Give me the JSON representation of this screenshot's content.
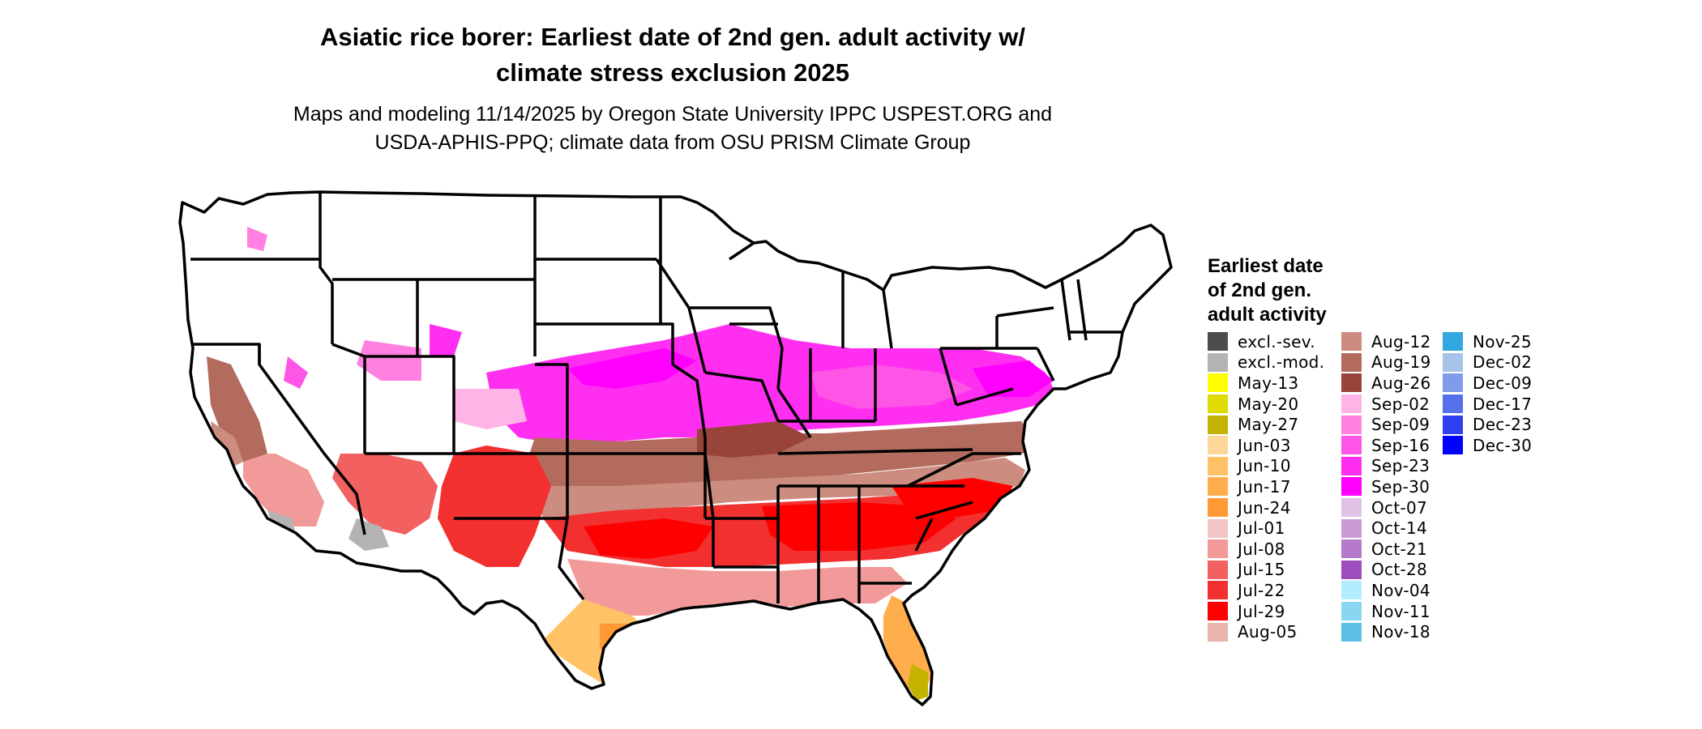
{
  "title": {
    "line1": "Asiatic rice borer: Earliest date of 2nd gen. adult activity w/",
    "line2": "climate stress exclusion 2025"
  },
  "subtitle": {
    "line1": "Maps and modeling 11/14/2025 by Oregon State University IPPC USPEST.ORG and",
    "line2": "USDA-APHIS-PPQ; climate data from OSU PRISM Climate Group"
  },
  "legend": {
    "title_lines": [
      "Earliest date",
      "of 2nd gen.",
      "adult activity"
    ],
    "columns": [
      [
        {
          "label": "excl.-sev.",
          "color": "#4d4d4d"
        },
        {
          "label": "excl.-mod.",
          "color": "#b3b3b3"
        },
        {
          "label": "May-13",
          "color": "#ffff00"
        },
        {
          "label": "May-20",
          "color": "#e0db00"
        },
        {
          "label": "May-27",
          "color": "#c4b300"
        },
        {
          "label": "Jun-03",
          "color": "#ffd699"
        },
        {
          "label": "Jun-10",
          "color": "#ffc266"
        },
        {
          "label": "Jun-17",
          "color": "#ffad4d"
        },
        {
          "label": "Jun-24",
          "color": "#ff9933"
        },
        {
          "label": "Jul-01",
          "color": "#f5c6c6"
        },
        {
          "label": "Jul-08",
          "color": "#f29a9a"
        },
        {
          "label": "Jul-15",
          "color": "#f26060"
        },
        {
          "label": "Jul-22",
          "color": "#f23030"
        },
        {
          "label": "Jul-29",
          "color": "#ff0000"
        },
        {
          "label": "Aug-05",
          "color": "#e8b4ac"
        }
      ],
      [
        {
          "label": "Aug-12",
          "color": "#cc8c80"
        },
        {
          "label": "Aug-19",
          "color": "#b36b5e"
        },
        {
          "label": "Aug-26",
          "color": "#99443a"
        },
        {
          "label": "Sep-02",
          "color": "#ffb3e6"
        },
        {
          "label": "Sep-09",
          "color": "#ff80e0"
        },
        {
          "label": "Sep-16",
          "color": "#ff55e6"
        },
        {
          "label": "Sep-23",
          "color": "#ff2ef0"
        },
        {
          "label": "Sep-30",
          "color": "#ff00ff"
        },
        {
          "label": "Oct-07",
          "color": "#e0c2e6"
        },
        {
          "label": "Oct-14",
          "color": "#c99bd6"
        },
        {
          "label": "Oct-21",
          "color": "#b57ac9"
        },
        {
          "label": "Oct-28",
          "color": "#9e4dbd"
        },
        {
          "label": "Nov-04",
          "color": "#b3ecff"
        },
        {
          "label": "Nov-11",
          "color": "#8ad6f2"
        },
        {
          "label": "Nov-18",
          "color": "#5cbfe6"
        }
      ],
      [
        {
          "label": "Nov-25",
          "color": "#33a8e0"
        },
        {
          "label": "Dec-02",
          "color": "#a6c4ea"
        },
        {
          "label": "Dec-09",
          "color": "#7f9bea"
        },
        {
          "label": "Dec-17",
          "color": "#5570ea"
        },
        {
          "label": "Dec-23",
          "color": "#3040f0"
        },
        {
          "label": "Dec-30",
          "color": "#0000ff"
        }
      ]
    ]
  },
  "map_colors": {
    "background": "#ffffff",
    "border": "#000000"
  }
}
